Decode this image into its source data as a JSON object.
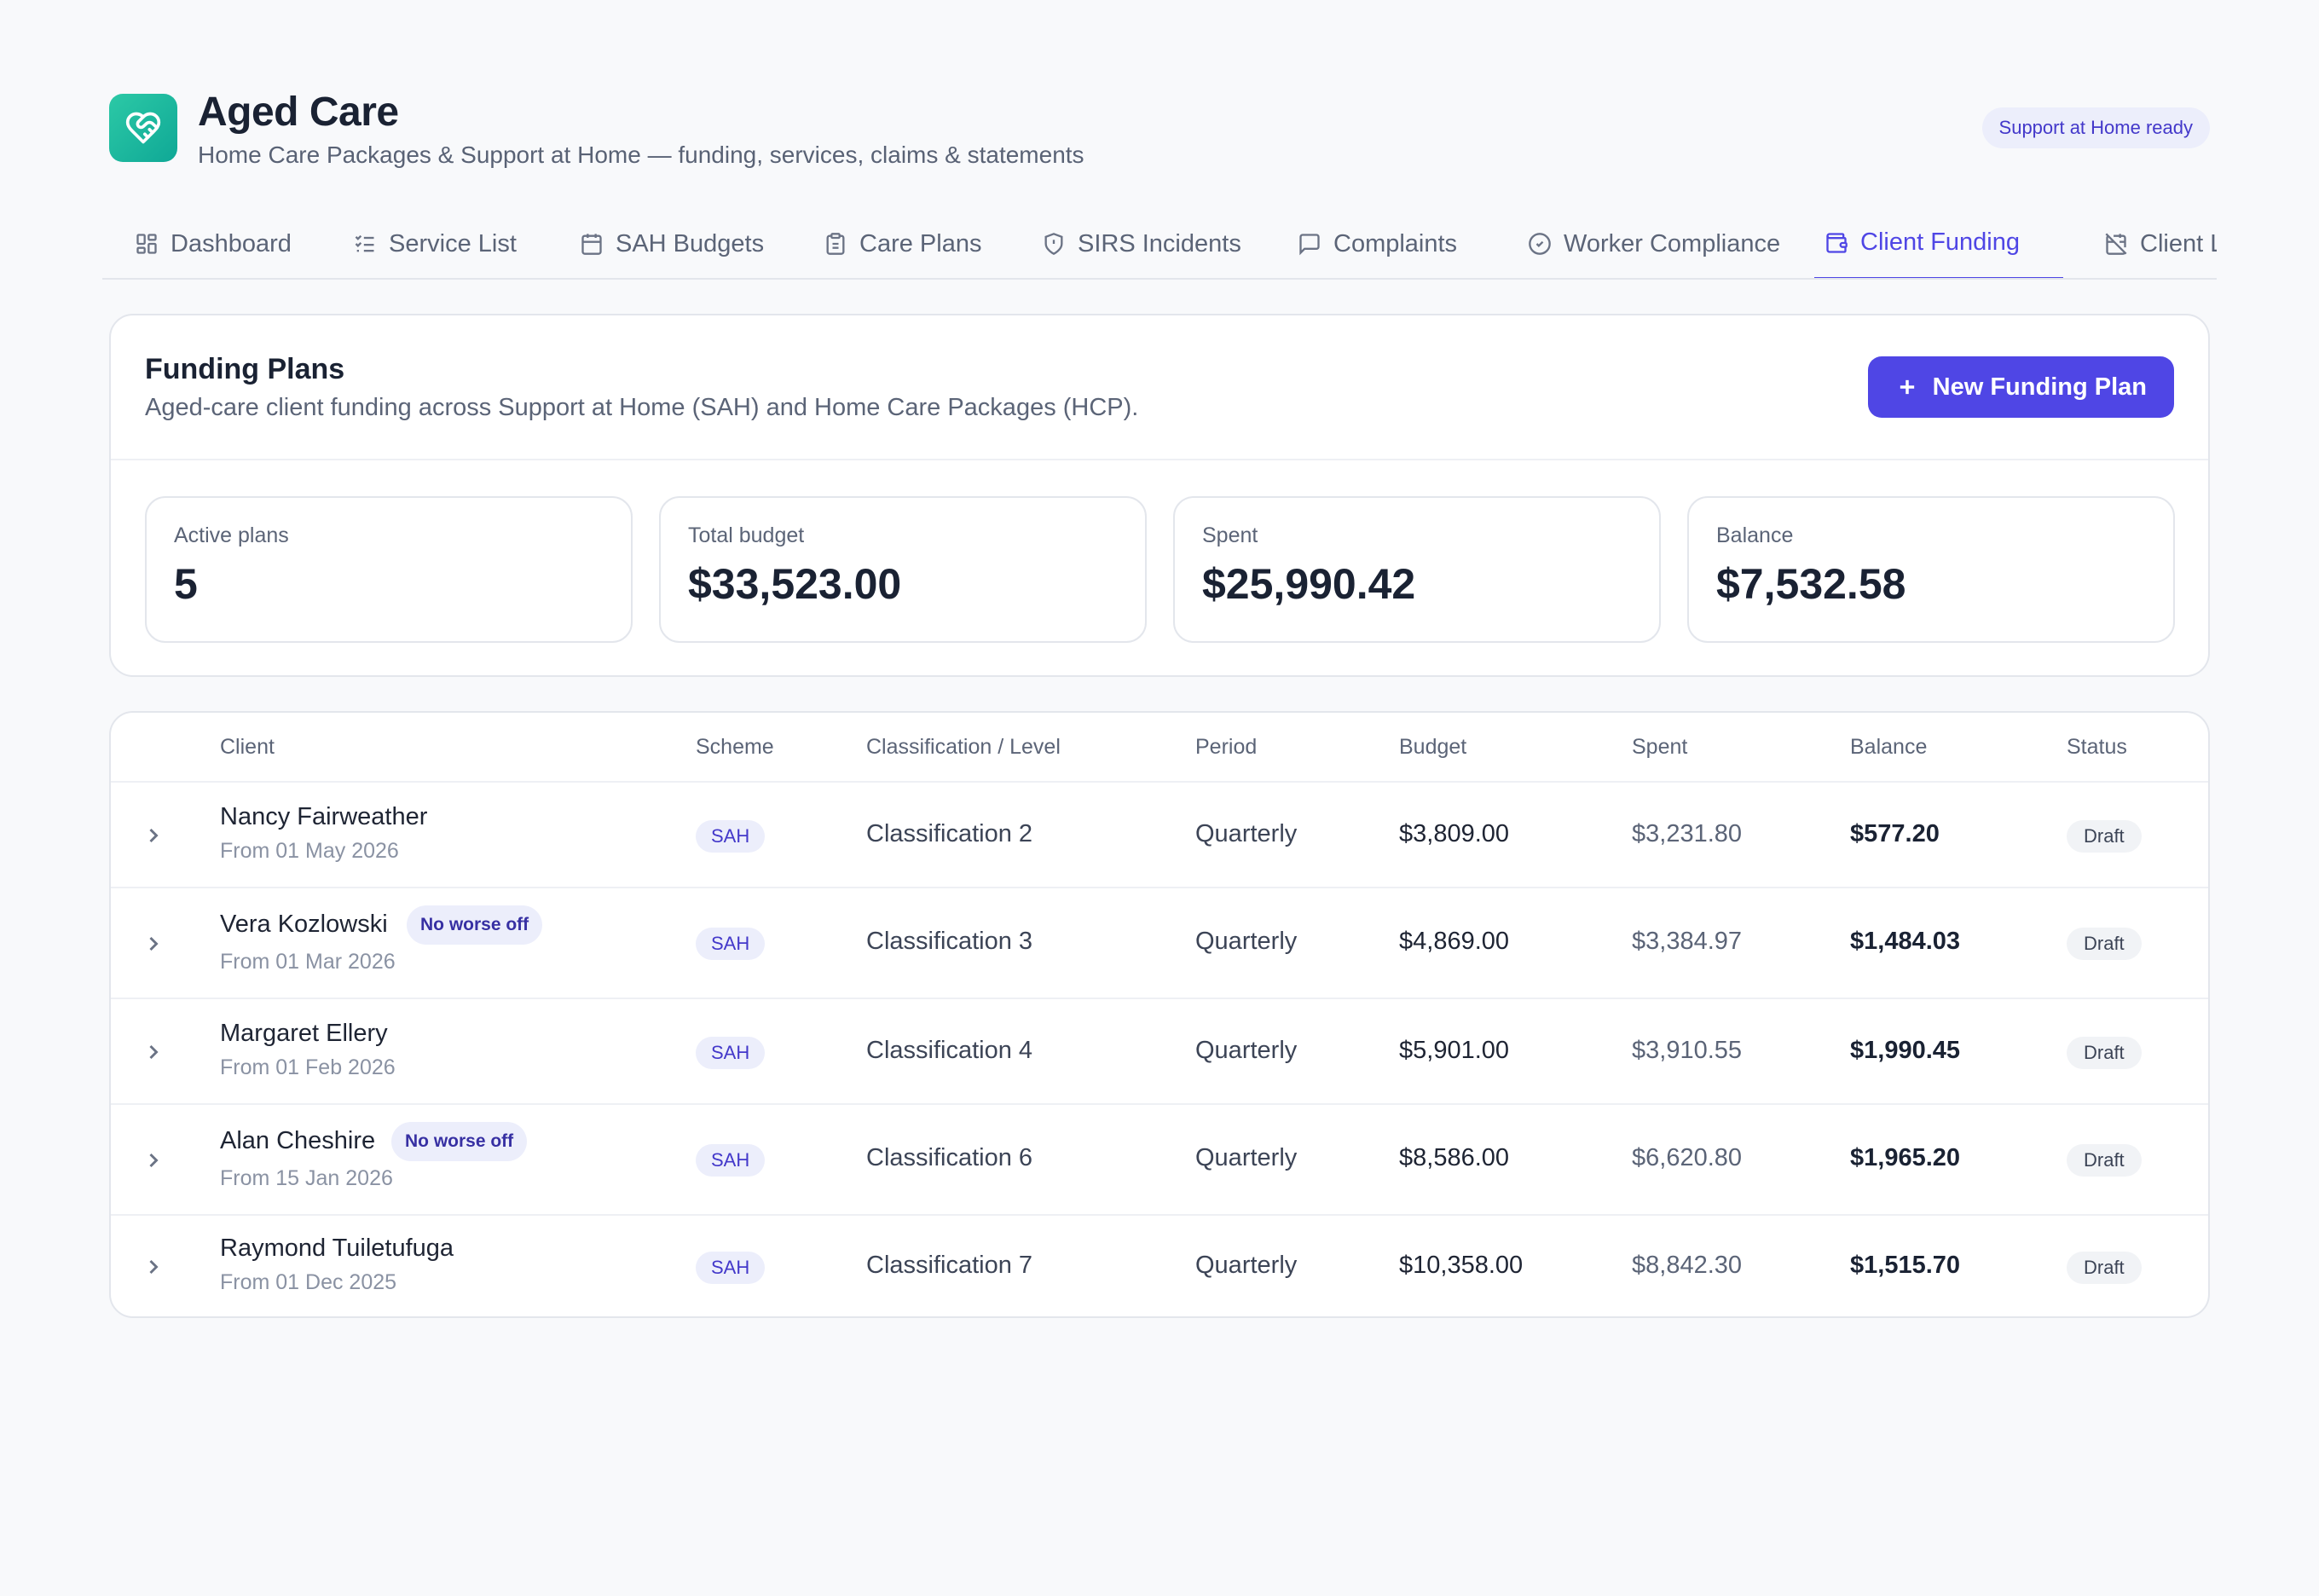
{
  "app": {
    "title": "Aged Care",
    "subtitle": "Home Care Packages & Support at Home — funding, services, claims & statements",
    "badge": "Support at Home ready",
    "logo_icon": "heart-handshake-icon",
    "brand_color": "#14b8a6",
    "accent_color": "#4f46e5"
  },
  "tabs": [
    {
      "label": "Dashboard",
      "icon": "grid-icon"
    },
    {
      "label": "Service List",
      "icon": "checklist-icon"
    },
    {
      "label": "SAH Budgets",
      "icon": "calendar-icon"
    },
    {
      "label": "Care Plans",
      "icon": "clipboard-icon"
    },
    {
      "label": "SIRS Incidents",
      "icon": "shield-alert-icon"
    },
    {
      "label": "Complaints",
      "icon": "message-square-icon"
    },
    {
      "label": "Worker Compliance",
      "icon": "check-circle-icon"
    },
    {
      "label": "Client Funding",
      "icon": "wallet-icon",
      "active": true
    },
    {
      "label": "Client L",
      "icon": "calendar-off-icon"
    }
  ],
  "funding": {
    "title": "Funding Plans",
    "description": "Aged-care client funding across Support at Home (SAH) and Home Care Packages (HCP).",
    "new_button": "New Funding Plan",
    "stats": [
      {
        "label": "Active plans",
        "value": "5"
      },
      {
        "label": "Total budget",
        "value": "$33,523.00"
      },
      {
        "label": "Spent",
        "value": "$25,990.42"
      },
      {
        "label": "Balance",
        "value": "$7,532.58"
      }
    ]
  },
  "table": {
    "headers": [
      "Client",
      "Scheme",
      "Classification / Level",
      "Period",
      "Budget",
      "Spent",
      "Balance",
      "Status"
    ],
    "rows": [
      {
        "name": "Nancy Fairweather",
        "from": "From 01 May 2026",
        "badge": "",
        "scheme": "SAH",
        "classification": "Classification 2",
        "period": "Quarterly",
        "budget": "$3,809.00",
        "spent": "$3,231.80",
        "balance": "$577.20",
        "status": "Draft"
      },
      {
        "name": "Vera Kozlowski",
        "from": "From 01 Mar 2026",
        "badge": "No worse off",
        "scheme": "SAH",
        "classification": "Classification 3",
        "period": "Quarterly",
        "budget": "$4,869.00",
        "spent": "$3,384.97",
        "balance": "$1,484.03",
        "status": "Draft"
      },
      {
        "name": "Margaret Ellery",
        "from": "From 01 Feb 2026",
        "badge": "",
        "scheme": "SAH",
        "classification": "Classification 4",
        "period": "Quarterly",
        "budget": "$5,901.00",
        "spent": "$3,910.55",
        "balance": "$1,990.45",
        "status": "Draft"
      },
      {
        "name": "Alan Cheshire",
        "from": "From 15 Jan 2026",
        "badge": "No worse off",
        "scheme": "SAH",
        "classification": "Classification 6",
        "period": "Quarterly",
        "budget": "$8,586.00",
        "spent": "$6,620.80",
        "balance": "$1,965.20",
        "status": "Draft"
      },
      {
        "name": "Raymond Tuiletufuga",
        "from": "From 01 Dec 2025",
        "badge": "",
        "scheme": "SAH",
        "classification": "Classification 7",
        "period": "Quarterly",
        "budget": "$10,358.00",
        "spent": "$8,842.30",
        "balance": "$1,515.70",
        "status": "Draft"
      }
    ]
  }
}
